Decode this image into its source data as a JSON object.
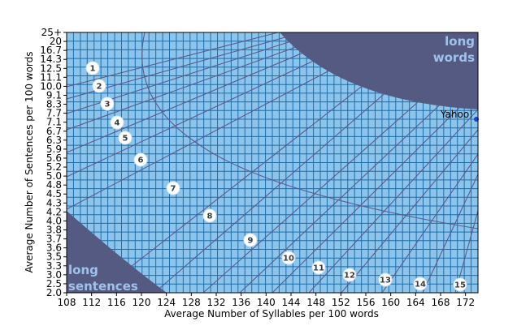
{
  "chart_data": {
    "type": "scatter",
    "title": "",
    "xlabel": "Average Number of Syllables per 100 words",
    "ylabel": "Average Number of Sentences per 100 words",
    "xlim": [
      108,
      174
    ],
    "x_ticks": [
      108,
      112,
      116,
      120,
      124,
      128,
      132,
      136,
      140,
      144,
      148,
      152,
      156,
      160,
      164,
      168,
      172
    ],
    "y_tick_labels": [
      "2.0",
      "2.5",
      "3.0",
      "3.3",
      "3.5",
      "3.6",
      "3.7",
      "3.8",
      "4.0",
      "4.2",
      "4.3",
      "4.5",
      "4.8",
      "5.0",
      "5.2",
      "5.6",
      "5.9",
      "6.3",
      "6.7",
      "7.1",
      "7.7",
      "8.3",
      "9.1",
      "10.0",
      "11.1",
      "12.5",
      "14.3",
      "16.7",
      "20",
      "25+"
    ],
    "grid": true,
    "background_color": "#8cc4ec",
    "grid_color": "#1f6ea8",
    "region_color": "#555a82",
    "line_color": "#5b5b8c",
    "region_labels": {
      "long_words": [
        "long",
        "words"
      ],
      "long_sentences": [
        "long",
        "sentences"
      ]
    },
    "grade_markers": [
      "1",
      "2",
      "3",
      "4",
      "5",
      "6",
      "7",
      "8",
      "9",
      "10",
      "11",
      "12",
      "13",
      "14",
      "15"
    ],
    "series": [
      {
        "name": "Yahoo!",
        "points": [
          {
            "x": 174,
            "y": 7.3
          }
        ],
        "color": "#1a3fd6"
      }
    ]
  }
}
